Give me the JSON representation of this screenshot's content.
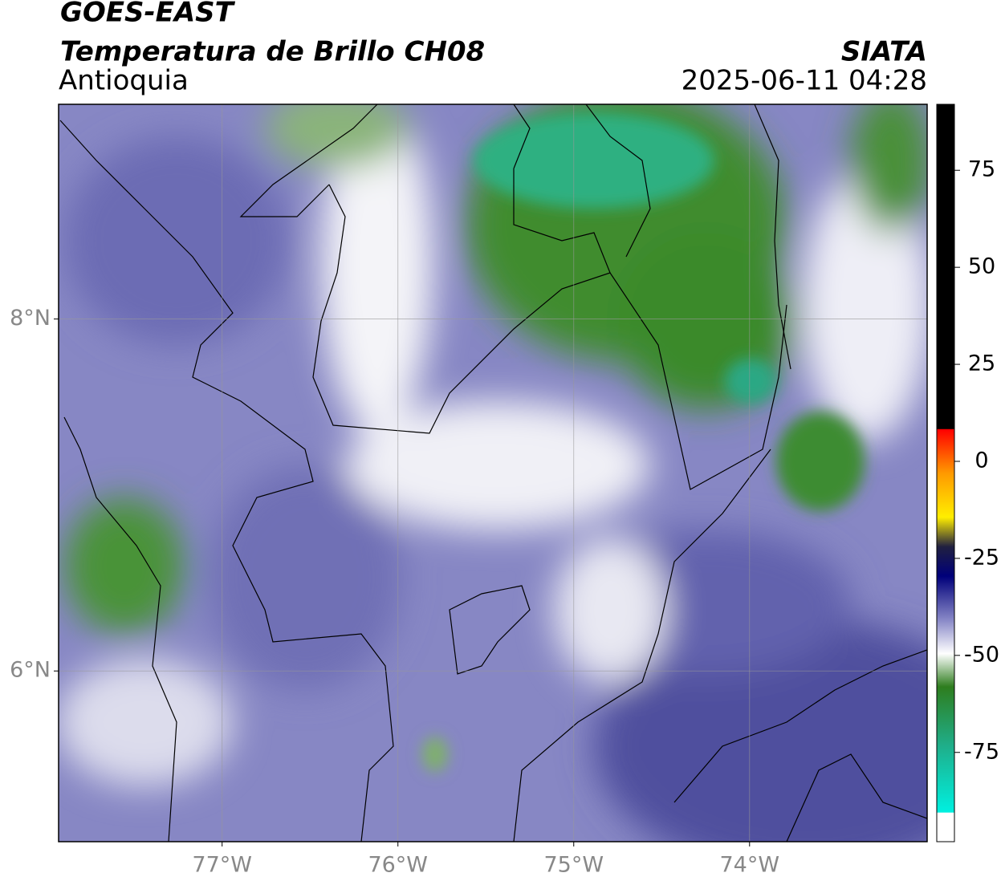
{
  "header": {
    "satellite": "GOES-EAST",
    "product": "Temperatura de Brillo CH08",
    "region": "Antioquia",
    "source": "SIATA",
    "datetime": "2025-06-11 04:28"
  },
  "map": {
    "xlim": [
      -77.93,
      -72.99
    ],
    "ylim": [
      5.03,
      9.22
    ],
    "xticks": [
      {
        "value": -77,
        "label": "77°W"
      },
      {
        "value": -76,
        "label": "76°W"
      },
      {
        "value": -75,
        "label": "75°W"
      },
      {
        "value": -74,
        "label": "74°W"
      }
    ],
    "yticks": [
      {
        "value": 6,
        "label": "6°N"
      },
      {
        "value": 8,
        "label": "8°N"
      }
    ]
  },
  "colorbar": {
    "lim": [
      -98,
      92
    ],
    "ticks": [
      -75,
      -50,
      -25,
      0,
      25,
      50,
      75
    ]
  }
}
